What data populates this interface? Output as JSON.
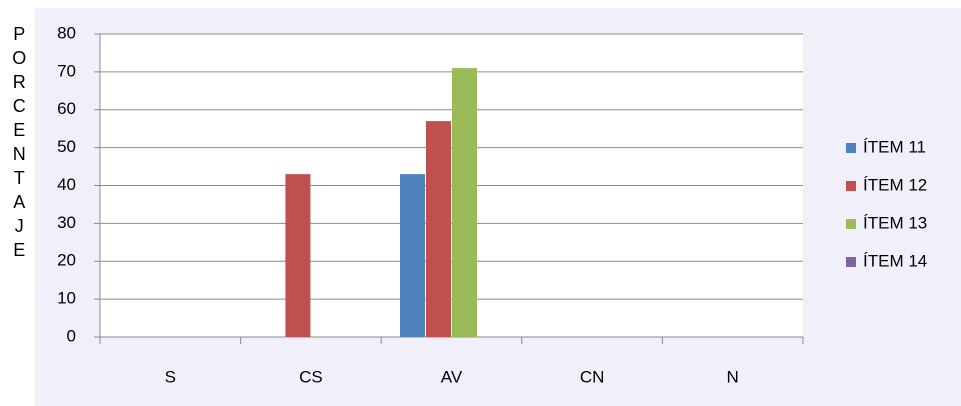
{
  "chart_data": {
    "type": "bar",
    "y_label": "PORCENTAJE",
    "categories": [
      "S",
      "CS",
      "AV",
      "CN",
      "N"
    ],
    "series": [
      {
        "name": "ÍTEM 11",
        "color": "#4f81bd",
        "values": [
          0,
          0,
          43,
          0,
          0
        ]
      },
      {
        "name": "ÍTEM 12",
        "color": "#c0504d",
        "values": [
          0,
          43,
          57,
          0,
          0
        ]
      },
      {
        "name": "ÍTEM 13",
        "color": "#9bbb59",
        "values": [
          0,
          0,
          71,
          0,
          0
        ]
      },
      {
        "name": "ÍTEM 14",
        "color": "#8064a2",
        "values": [
          0,
          0,
          0,
          0,
          0
        ]
      }
    ],
    "ylim": [
      0,
      80
    ],
    "yticks": [
      0,
      10,
      20,
      30,
      40,
      50,
      60,
      70,
      80
    ],
    "grid": true,
    "legend": "right"
  }
}
